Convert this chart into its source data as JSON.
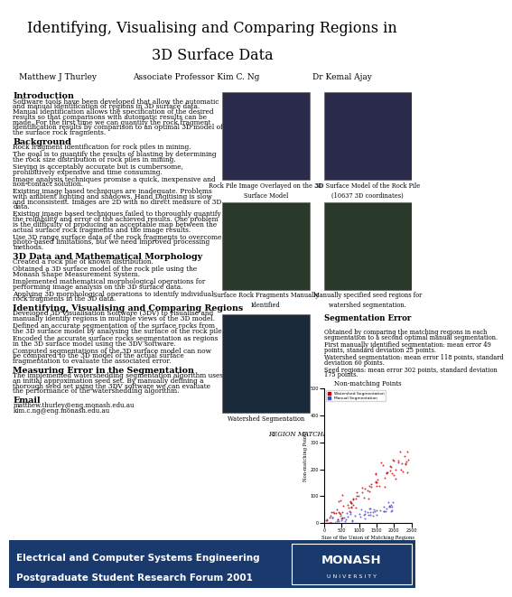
{
  "title_line1": "Identifying, Visualising and Comparing Regions in",
  "title_line2": "3D Surface Data",
  "authors": [
    "Matthew J Thurley",
    "Associate Professor Kim C. Ng",
    "Dr Kemal Ajay"
  ],
  "footer_line1": "Electrical and Computer Systems Engineering",
  "footer_line2": "Postgraduate Student Research Forum 2001",
  "footer_bg": "#1a3a6e",
  "footer_text_color": "#ffffff",
  "intro_heading": "Introduction",
  "intro_text": "Software tools have been developed that allow the automatic\nand manual identification of regions in 3D surface data.\nManual identification allows the specification of the desired\nresults so that comparisons with automatic results can be\nmade. For the first time we can quantify the rock fragment\nidentification results by comparison to an optimal 3D model of\nthe surface rock fragments.",
  "bg_heading": "Background",
  "bg_text": "Rock fragment identification for rock piles in mining.\n\nThe goal is to quantify the results of blasting by determining\nthe rock size distribution of rock piles in mining.\n\nSieving is acceptably accurate but is cumbersome,\nprohibitively expensive and time consuming.\n\nImage analysis techniques promise a quick, inexpensive and\nnon-contact solution.\n\nExisting image based techniques are inadequate. Problems\nwith ambient lighting and shadows. Hand Digitising is slow\nand inconsistent. Images are 2D with no direct measure of 3D\ndata.\n\nExisting image based techniques failed to thoroughly quantify\nthe reliability and error of the achieved results. One problem\nis the difficulty of producing an acceptable map between the\nactual surface rock fragments and the image results.\n\nUse 3D range surface data of the rock fragments to overcome\nphoto-based limitations, but we need improved processing\nmethods.",
  "morph_heading": "3D Data and Mathematical Morphology",
  "morph_text": "Created a rock pile of known distribution.\n\nObtained a 3D surface model of the rock pile using the\nMonash Shape Measurement System.\n\nImplemented mathematical morphological operations for\nperforming image analysis on the 3D surface data.\n\nApplying 3D morphological operations to identify individual\nrock fragments in the 3D data.",
  "ivc_heading": "Identifying, Visualising and Comparing Regions",
  "ivc_text": "Developed 3D Visualisation Software (3DV) to visualise and\nmanually identify regions in multiple views of the 3D model.\n\nDefined an accurate segmentation of the surface rocks from\nthe 3D surface model by analysing the surface of the rock pile.\n\nEncoded the accurate surface rocks segmentation as regions\nin the 3D surface model using the 3DV software.\n\nComputed segmentations of the 3D surface model can now\nbe compared to the 3D model of the actual surface\nfragmentation to evaluate the associated error.",
  "meas_heading": "Measuring Error in the Segmentation",
  "meas_text": "The implemented watershedding segmentation algorithm uses\nan initial approximation seed set. By manually defining a\nthorough seed set using the 3DV software we can evaluate\nthe performance of the watershedding algorithm.",
  "email_heading": "Email",
  "email_text": "matthew.thurley@eng.monash.edu.au\nkim.c.ng@eng.monash.edu.au",
  "img1_label": "Rock Pile Image Overlayed on the 3D\nSurface Model",
  "img2_label": "3D Surface Model of the Rock Pile\n(10637 3D coordinates)",
  "img3_label": "Surface Rock Fragments Manually\nIdentified",
  "img4_label": "Manually specified seed regions for\nwatershed segmentation.",
  "seg_heading": "Segmentation Error",
  "seg_text": "Obtained by comparing the matching regions in each\nsegmentation to a second optimal manual segmentation.\n\nFirst manually identified segmentation: mean error 49\npoints, standard deviation 25 points.\n\nWatershed segmentation: mean error 118 points, standard\ndeviation 60 points.\n\nSeed regions: mean error 302 points, standard deviation\n175 points.",
  "ws_label": "Watershed Segmentation",
  "chart_title": "Non-matching Points",
  "chart_xlabel": "Size of the Union of Matching Regions",
  "chart_ylabel": "Non-matching Points",
  "chart_ylim": [
    0,
    500
  ],
  "chart_xlim": [
    0,
    2500
  ],
  "chart_yticks": [
    0,
    100,
    200,
    300,
    400,
    500
  ],
  "chart_xticks": [
    0,
    500,
    1000,
    1500,
    2000,
    2500
  ],
  "series1_color": "#cc0000",
  "series2_color": "#4444cc",
  "legend1": "Watershed Segmentation",
  "legend2": "Manual Segmentation",
  "region_label": "REGION MATCHING REGION"
}
